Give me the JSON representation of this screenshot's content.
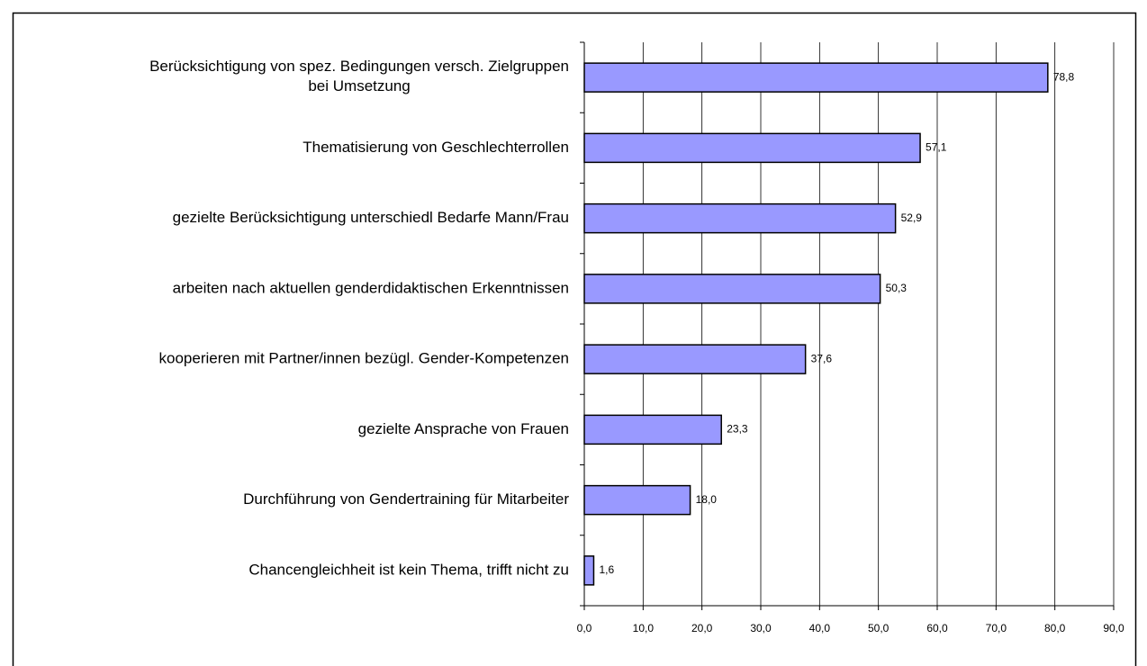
{
  "chart_data": {
    "type": "barh",
    "categories": [
      "Berücksichtigung von spez. Bedingungen versch. Zielgruppen\nbei Umsetzung",
      "Thematisierung von Geschlechterrollen",
      "gezielte Berücksichtigung unterschiedl Bedarfe Mann/Frau",
      "arbeiten nach aktuellen genderdidaktischen Erkenntnissen",
      "kooperieren mit Partner/innen bezügl. Gender-Kompetenzen",
      "gezielte Ansprache von Frauen",
      "Durchführung von Gendertraining für Mitarbeiter",
      "Chancengleichheit ist kein Thema, trifft nicht zu"
    ],
    "values": [
      78.8,
      57.1,
      52.9,
      50.3,
      37.6,
      23.3,
      18.0,
      1.6
    ],
    "value_labels": [
      "78,8",
      "57,1",
      "52,9",
      "50,3",
      "37,6",
      "23,3",
      "18,0",
      "1,6"
    ],
    "color": "#9999ff",
    "xlim": [
      0,
      90
    ],
    "xticks": [
      {
        "value": 0,
        "label": "0,0"
      },
      {
        "value": 10,
        "label": "10,0"
      },
      {
        "value": 20,
        "label": "20,0"
      },
      {
        "value": 30,
        "label": "30,0"
      },
      {
        "value": 40,
        "label": "40,0"
      },
      {
        "value": 50,
        "label": "50,0"
      },
      {
        "value": 60,
        "label": "60,0"
      },
      {
        "value": 70,
        "label": "70,0"
      },
      {
        "value": 80,
        "label": "80,0"
      },
      {
        "value": 90,
        "label": "90,0"
      }
    ],
    "grid": true
  }
}
